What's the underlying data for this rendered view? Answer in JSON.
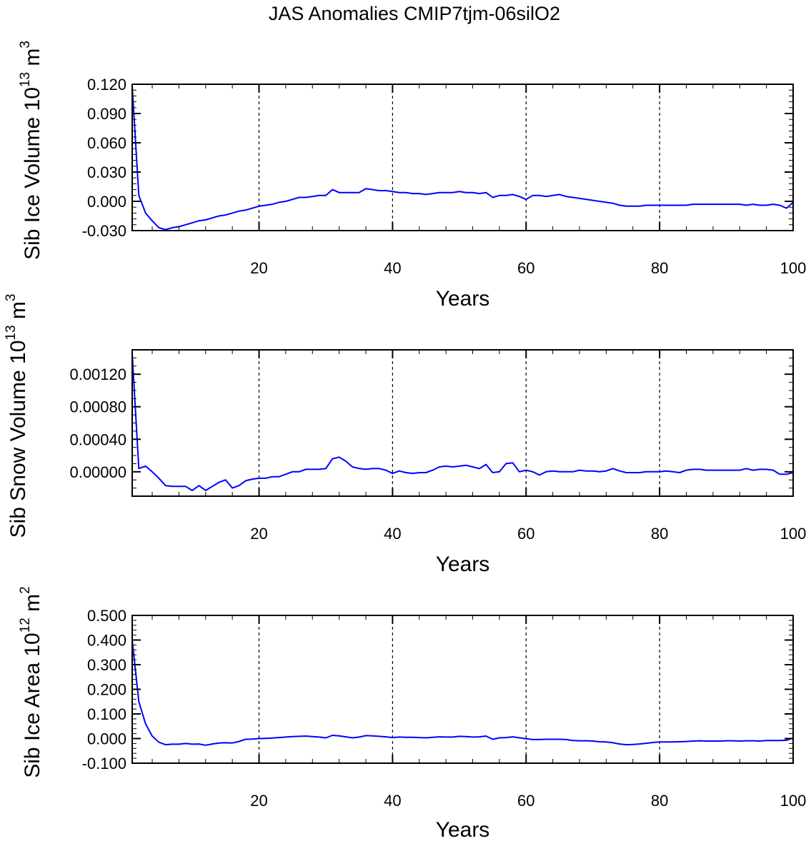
{
  "title": "JAS Anomalies CMIP7tjm-06silO2",
  "chart_data": [
    {
      "type": "line",
      "ylabel": {
        "base": "Sib Ice Volume 10",
        "exp": "13",
        "unit": " m",
        "unit_exp": "3"
      },
      "xlabel": "Years",
      "xlim": [
        1,
        100
      ],
      "ylim": [
        -0.03,
        0.12
      ],
      "x_ticks": [
        20,
        40,
        60,
        80,
        100
      ],
      "x_tick_labels": [
        "20",
        "40",
        "60",
        "80",
        "100"
      ],
      "y_ticks": [
        -0.03,
        0.0,
        0.03,
        0.06,
        0.09,
        0.12
      ],
      "y_tick_labels": [
        "-0.030",
        "0.000",
        "0.030",
        "0.060",
        "0.090",
        "0.120"
      ],
      "y_minor_step": 0.006,
      "x_minor_step": 4,
      "gridlines_x": [
        20,
        40,
        60,
        80
      ],
      "line_color": "#0000ff",
      "series": [
        {
          "x": [
            1,
            2,
            3,
            4,
            5,
            6,
            7,
            8,
            9,
            10,
            11,
            12,
            13,
            14,
            15,
            16,
            17,
            18,
            19,
            20,
            21,
            22,
            23,
            24,
            25,
            26,
            27,
            28,
            29,
            30,
            31,
            32,
            33,
            34,
            35,
            36,
            37,
            38,
            39,
            40,
            41,
            42,
            43,
            44,
            45,
            46,
            47,
            48,
            49,
            50,
            51,
            52,
            53,
            54,
            55,
            56,
            57,
            58,
            59,
            60,
            61,
            62,
            63,
            64,
            65,
            66,
            67,
            68,
            69,
            70,
            71,
            72,
            73,
            74,
            75,
            76,
            77,
            78,
            79,
            80,
            81,
            82,
            83,
            84,
            85,
            86,
            87,
            88,
            89,
            90,
            91,
            92,
            93,
            94,
            95,
            96,
            97,
            98,
            99,
            100
          ],
          "values": [
            0.118,
            0.006,
            -0.012,
            -0.02,
            -0.027,
            -0.029,
            -0.027,
            -0.026,
            -0.024,
            -0.022,
            -0.02,
            -0.019,
            -0.017,
            -0.015,
            -0.014,
            -0.012,
            -0.01,
            -0.009,
            -0.007,
            -0.005,
            -0.004,
            -0.003,
            -0.001,
            0.0,
            0.002,
            0.004,
            0.004,
            0.005,
            0.006,
            0.006,
            0.012,
            0.009,
            0.009,
            0.009,
            0.009,
            0.013,
            0.012,
            0.011,
            0.011,
            0.01,
            0.009,
            0.009,
            0.008,
            0.008,
            0.007,
            0.008,
            0.009,
            0.009,
            0.009,
            0.01,
            0.009,
            0.009,
            0.008,
            0.009,
            0.004,
            0.006,
            0.006,
            0.007,
            0.005,
            0.002,
            0.006,
            0.006,
            0.005,
            0.006,
            0.007,
            0.005,
            0.004,
            0.003,
            0.002,
            0.001,
            0.0,
            -0.001,
            -0.002,
            -0.004,
            -0.005,
            -0.005,
            -0.005,
            -0.004,
            -0.004,
            -0.004,
            -0.004,
            -0.004,
            -0.004,
            -0.004,
            -0.003,
            -0.003,
            -0.003,
            -0.003,
            -0.003,
            -0.003,
            -0.003,
            -0.003,
            -0.004,
            -0.003,
            -0.004,
            -0.004,
            -0.003,
            -0.004,
            -0.007,
            -0.001
          ]
        }
      ]
    },
    {
      "type": "line",
      "ylabel": {
        "base": "Sib Snow Volume 10",
        "exp": "13",
        "unit": " m",
        "unit_exp": "3"
      },
      "xlabel": "Years",
      "xlim": [
        1,
        100
      ],
      "ylim": [
        -0.0003,
        0.0015
      ],
      "x_ticks": [
        20,
        40,
        60,
        80,
        100
      ],
      "x_tick_labels": [
        "20",
        "40",
        "60",
        "80",
        "100"
      ],
      "y_ticks": [
        0.0,
        0.0004,
        0.0008,
        0.0012
      ],
      "y_tick_labels": [
        "0.00000",
        "0.00040",
        "0.00080",
        "0.00120"
      ],
      "y_minor_step": 0.0001,
      "x_minor_step": 4,
      "gridlines_x": [
        20,
        40,
        60,
        80
      ],
      "line_color": "#0000ff",
      "series": [
        {
          "x": [
            1,
            2,
            3,
            4,
            5,
            6,
            7,
            8,
            9,
            10,
            11,
            12,
            13,
            14,
            15,
            16,
            17,
            18,
            19,
            20,
            21,
            22,
            23,
            24,
            25,
            26,
            27,
            28,
            29,
            30,
            31,
            32,
            33,
            34,
            35,
            36,
            37,
            38,
            39,
            40,
            41,
            42,
            43,
            44,
            45,
            46,
            47,
            48,
            49,
            50,
            51,
            52,
            53,
            54,
            55,
            56,
            57,
            58,
            59,
            60,
            61,
            62,
            63,
            64,
            65,
            66,
            67,
            68,
            69,
            70,
            71,
            72,
            73,
            74,
            75,
            76,
            77,
            78,
            79,
            80,
            81,
            82,
            83,
            84,
            85,
            86,
            87,
            88,
            89,
            90,
            91,
            92,
            93,
            94,
            95,
            96,
            97,
            98,
            99,
            100
          ],
          "values": [
            0.00145,
            4e-05,
            7e-05,
            0.0,
            -8e-05,
            -0.00017,
            -0.00018,
            -0.00018,
            -0.00018,
            -0.00023,
            -0.00017,
            -0.00023,
            -0.00018,
            -0.00013,
            -0.0001,
            -0.0002,
            -0.00017,
            -0.00011,
            -9e-05,
            -8e-05,
            -8e-05,
            -6e-05,
            -6e-05,
            -3e-05,
            0.0,
            0.0,
            3e-05,
            3e-05,
            3e-05,
            4e-05,
            0.00016,
            0.00018,
            0.00013,
            6e-05,
            4e-05,
            3e-05,
            4e-05,
            4e-05,
            2e-05,
            -2e-05,
            1e-05,
            -1e-05,
            -2e-05,
            -1e-05,
            -1e-05,
            2e-05,
            6e-05,
            7e-05,
            6e-05,
            7e-05,
            8e-05,
            6e-05,
            4e-05,
            9e-05,
            -1e-05,
            0.0,
            0.0001,
            0.00011,
            0.0,
            2e-05,
            0.0,
            -4e-05,
            0.0,
            1e-05,
            0.0,
            0.0,
            0.0,
            2e-05,
            1e-05,
            1e-05,
            0.0,
            1e-05,
            4e-05,
            1e-05,
            -1e-05,
            -1e-05,
            -1e-05,
            0.0,
            0.0,
            0.0,
            1e-05,
            0.0,
            -1e-05,
            2e-05,
            3e-05,
            3e-05,
            2e-05,
            2e-05,
            2e-05,
            2e-05,
            2e-05,
            2e-05,
            4e-05,
            2e-05,
            3e-05,
            3e-05,
            2e-05,
            -3e-05,
            -3e-05,
            -1e-05
          ]
        }
      ]
    },
    {
      "type": "line",
      "ylabel": {
        "base": "Sib Ice Area 10",
        "exp": "12",
        "unit": " m",
        "unit_exp": "2"
      },
      "xlabel": "Years",
      "xlim": [
        1,
        100
      ],
      "ylim": [
        -0.1,
        0.5
      ],
      "x_ticks": [
        20,
        40,
        60,
        80,
        100
      ],
      "x_tick_labels": [
        "20",
        "40",
        "60",
        "80",
        "100"
      ],
      "y_ticks": [
        -0.1,
        0.0,
        0.1,
        0.2,
        0.3,
        0.4,
        0.5
      ],
      "y_tick_labels": [
        "-0.100",
        "0.000",
        "0.100",
        "0.200",
        "0.300",
        "0.400",
        "0.500"
      ],
      "y_minor_step": 0.02,
      "x_minor_step": 4,
      "gridlines_x": [
        20,
        40,
        60,
        80
      ],
      "line_color": "#0000ff",
      "series": [
        {
          "x": [
            1,
            2,
            3,
            4,
            5,
            6,
            7,
            8,
            9,
            10,
            11,
            12,
            13,
            14,
            15,
            16,
            17,
            18,
            19,
            20,
            21,
            22,
            23,
            24,
            25,
            26,
            27,
            28,
            29,
            30,
            31,
            32,
            33,
            34,
            35,
            36,
            37,
            38,
            39,
            40,
            41,
            42,
            43,
            44,
            45,
            46,
            47,
            48,
            49,
            50,
            51,
            52,
            53,
            54,
            55,
            56,
            57,
            58,
            59,
            60,
            61,
            62,
            63,
            64,
            65,
            66,
            67,
            68,
            69,
            70,
            71,
            72,
            73,
            74,
            75,
            76,
            77,
            78,
            79,
            80,
            81,
            82,
            83,
            84,
            85,
            86,
            87,
            88,
            89,
            90,
            91,
            92,
            93,
            94,
            95,
            96,
            97,
            98,
            99,
            100
          ],
          "values": [
            0.4,
            0.15,
            0.06,
            0.01,
            -0.015,
            -0.025,
            -0.023,
            -0.023,
            -0.02,
            -0.023,
            -0.022,
            -0.027,
            -0.022,
            -0.018,
            -0.017,
            -0.018,
            -0.012,
            -0.003,
            -0.002,
            0.0,
            0.001,
            0.002,
            0.004,
            0.006,
            0.008,
            0.009,
            0.01,
            0.008,
            0.006,
            0.003,
            0.013,
            0.011,
            0.007,
            0.003,
            0.006,
            0.012,
            0.011,
            0.009,
            0.007,
            0.004,
            0.006,
            0.005,
            0.005,
            0.004,
            0.003,
            0.005,
            0.007,
            0.006,
            0.006,
            0.009,
            0.008,
            0.006,
            0.007,
            0.01,
            -0.003,
            0.003,
            0.004,
            0.007,
            0.003,
            -0.001,
            -0.004,
            -0.004,
            -0.003,
            -0.003,
            -0.003,
            -0.004,
            -0.008,
            -0.009,
            -0.009,
            -0.01,
            -0.013,
            -0.014,
            -0.017,
            -0.022,
            -0.025,
            -0.024,
            -0.022,
            -0.019,
            -0.016,
            -0.014,
            -0.014,
            -0.014,
            -0.013,
            -0.012,
            -0.01,
            -0.009,
            -0.01,
            -0.01,
            -0.01,
            -0.009,
            -0.009,
            -0.01,
            -0.009,
            -0.009,
            -0.01,
            -0.008,
            -0.008,
            -0.008,
            -0.007,
            0.003
          ]
        }
      ]
    }
  ]
}
